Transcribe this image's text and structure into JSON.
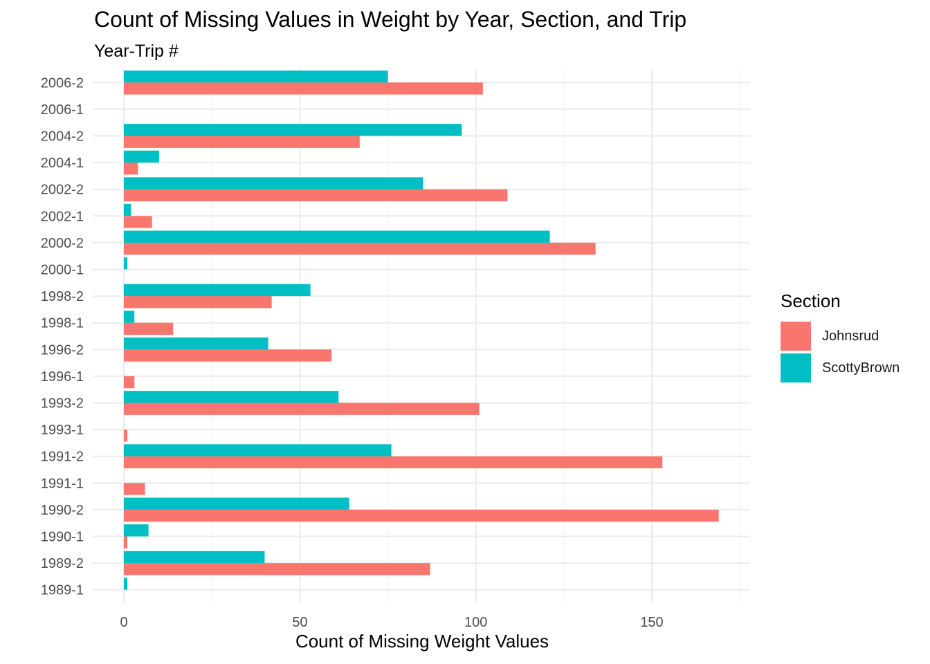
{
  "chart_data": {
    "type": "bar",
    "orientation": "horizontal",
    "title": "Count of Missing Values in Weight by Year, Section, and Trip",
    "subtitle": "Year-Trip #",
    "xlabel": "Count of Missing Weight Values",
    "ylabel": "",
    "xlim": [
      0,
      175
    ],
    "x_ticks": [
      0,
      50,
      100,
      150
    ],
    "grid": true,
    "legend": {
      "title": "Section",
      "position": "right"
    },
    "categories": [
      "1989-1",
      "1989-2",
      "1990-1",
      "1990-2",
      "1991-1",
      "1991-2",
      "1993-1",
      "1993-2",
      "1996-1",
      "1996-2",
      "1998-1",
      "1998-2",
      "2000-1",
      "2000-2",
      "2002-1",
      "2002-2",
      "2004-1",
      "2004-2",
      "2006-1",
      "2006-2"
    ],
    "series": [
      {
        "name": "Johnsrud",
        "color": "#F8766D",
        "values": [
          0,
          87,
          1,
          169,
          6,
          153,
          1,
          101,
          3,
          59,
          14,
          42,
          0,
          134,
          8,
          109,
          4,
          67,
          0,
          102
        ]
      },
      {
        "name": "ScottyBrown",
        "color": "#00BFC4",
        "values": [
          1,
          40,
          7,
          64,
          0,
          76,
          0,
          61,
          0,
          41,
          3,
          53,
          1,
          121,
          2,
          85,
          10,
          96,
          0,
          75
        ]
      }
    ]
  }
}
